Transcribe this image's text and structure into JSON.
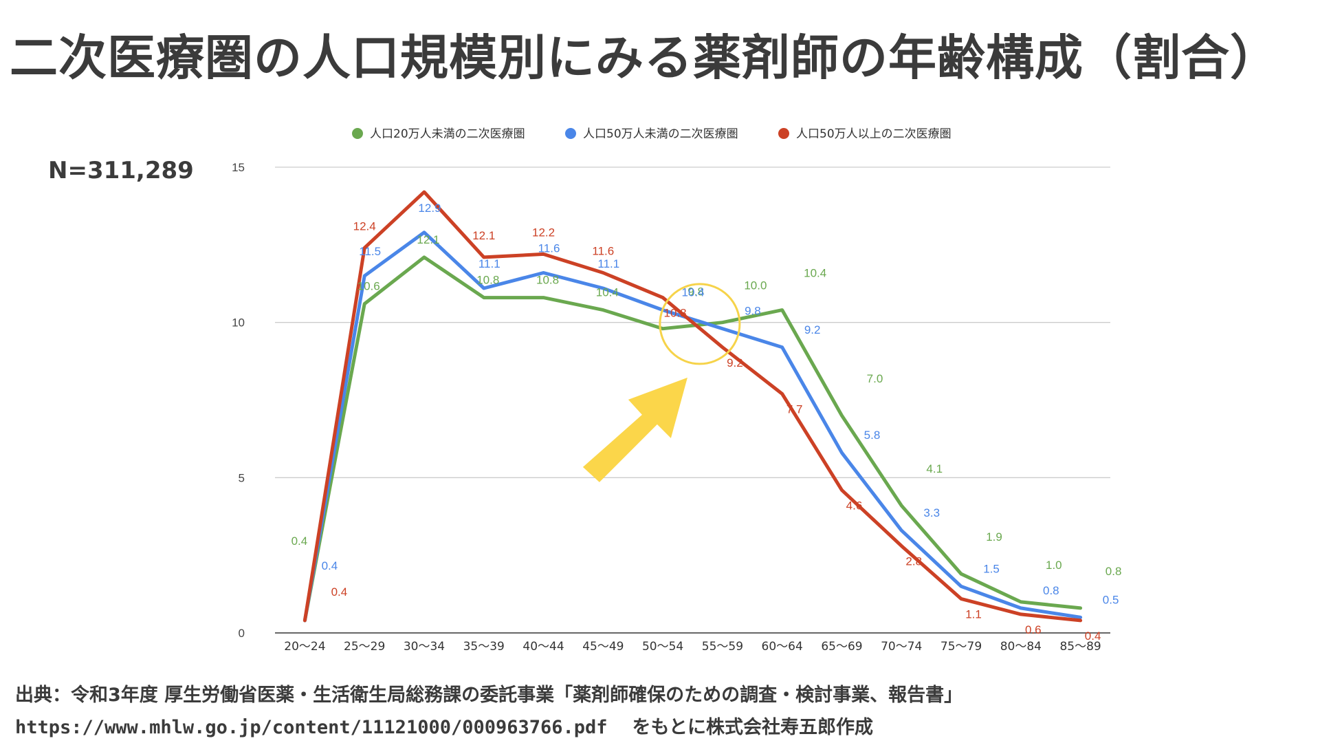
{
  "title": "二次医療圏の人口規模別にみる薬剤師の年齢構成（割合）",
  "sample_size": "N=311,289",
  "source": {
    "line1": "出典：令和3年度 厚生労働省医薬・生活衛生局総務課の委託事業「薬剤師確保のための調査・検討事業、報告書」",
    "url": "https://www.mhlw.go.jp/content/11121000/000963766.pdf",
    "note": "をもとに株式会社寿五郎作成"
  },
  "colors": {
    "green": "#6aa84f",
    "blue": "#4a86e8",
    "red": "#cc4125",
    "highlight_circle": "#f6d34a",
    "arrow": "#fbd64a",
    "grid": "#cccccc",
    "axis": "#333333"
  },
  "chart_data": {
    "type": "line",
    "title": "",
    "xlabel": "",
    "ylabel": "",
    "ylim": [
      0,
      15
    ],
    "yticks": [
      "0",
      "5",
      "10",
      "15"
    ],
    "grid": true,
    "legend_position": "top-center",
    "categories": [
      "20〜24",
      "25〜29",
      "30〜34",
      "35〜39",
      "40〜44",
      "45〜49",
      "50〜54",
      "55〜59",
      "60〜64",
      "65〜69",
      "70〜74",
      "75〜79",
      "80〜84",
      "85〜89"
    ],
    "series": [
      {
        "name": "人口20万人未満の二次医療圏",
        "color": "green",
        "values": [
          0.4,
          10.6,
          12.1,
          10.8,
          10.8,
          10.4,
          9.8,
          10.0,
          10.4,
          7.0,
          4.1,
          1.9,
          1.0,
          0.8
        ],
        "labels": [
          "0.4",
          "10.6",
          "12.1",
          "10.8",
          "10.8",
          "10.4",
          "9.8",
          "10.0",
          "10.4",
          "7.0",
          "4.1",
          "1.9",
          "1.0",
          "0.8"
        ]
      },
      {
        "name": "人口50万人未満の二次医療圏",
        "color": "blue",
        "values": [
          0.4,
          11.5,
          12.9,
          11.1,
          11.6,
          11.1,
          10.4,
          9.8,
          9.2,
          5.8,
          3.3,
          1.5,
          0.8,
          0.5
        ],
        "labels": [
          "0.4",
          "11.5",
          "12.9",
          "11.1",
          "11.6",
          "11.1",
          "10.4",
          "9.8",
          "9.2",
          "5.8",
          "3.3",
          "1.5",
          "0.8",
          "0.5"
        ]
      },
      {
        "name": "人口50万人以上の二次医療圏",
        "color": "red",
        "values": [
          0.4,
          12.4,
          14.2,
          12.1,
          12.2,
          11.6,
          10.8,
          9.2,
          7.7,
          4.6,
          2.8,
          1.1,
          0.6,
          0.4
        ],
        "labels": [
          "0.4",
          "12.4",
          "",
          "12.1",
          "12.2",
          "11.6",
          "10.8",
          "9.2",
          "7.7",
          "4.6",
          "2.8",
          "1.1",
          "0.6",
          "0.4"
        ]
      }
    ],
    "annotations": [
      {
        "type": "circle",
        "around_category": "55〜59",
        "description": "crossover highlight"
      },
      {
        "type": "arrow",
        "points_to_category": "55〜59"
      }
    ]
  }
}
